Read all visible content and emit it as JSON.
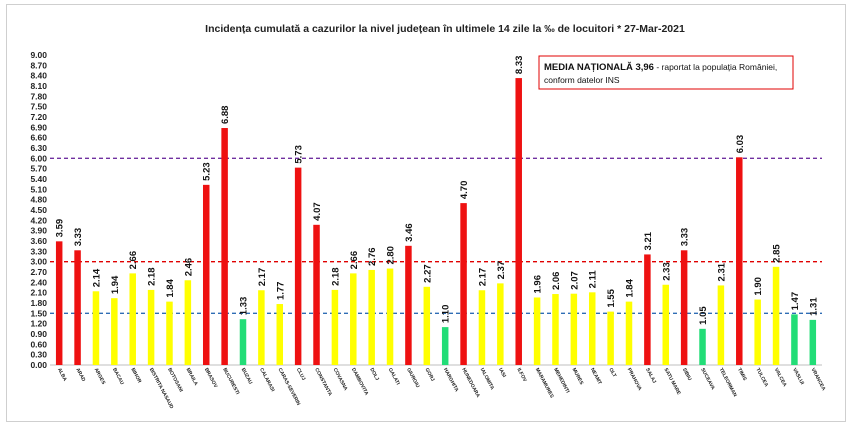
{
  "chart_data": {
    "type": "bar",
    "title": "Incidența cumulată a cazurilor la nivel județean în ultimele 14 zile la ‰ de locuitori * 27-Mar-2021",
    "xlabel": "",
    "ylabel": "",
    "ylim": [
      0,
      9.0
    ],
    "yticks": [
      "0.00",
      "0.30",
      "0.60",
      "0.90",
      "1.20",
      "1.50",
      "1.80",
      "2.10",
      "2.40",
      "2.70",
      "3.00",
      "3.30",
      "3.60",
      "3.90",
      "4.20",
      "4.50",
      "4.80",
      "5.10",
      "5.40",
      "5.70",
      "6.00",
      "6.30",
      "6.60",
      "6.90",
      "7.20",
      "7.50",
      "7.80",
      "8.10",
      "8.40",
      "8.70",
      "9.00"
    ],
    "categories": [
      "ALBA",
      "ARAD",
      "ARGES",
      "BACAU",
      "BIHOR",
      "BISTRITA NASAUD",
      "BOTOSANI",
      "BRAILA",
      "BRASOV",
      "BUCURESTI",
      "BUZAU",
      "CALARASI",
      "CARAS-SEVERIN",
      "CLUJ",
      "CONSTANTA",
      "COVASNA",
      "DAMBOVITA",
      "DOLJ",
      "GALATI",
      "GIURGIU",
      "GORJ",
      "HARGHITA",
      "HUNEDOARA",
      "IALOMITA",
      "IASI",
      "ILFOV",
      "MARAMURES",
      "MEHEDINTI",
      "MURES",
      "NEAMT",
      "OLT",
      "PRAHOVA",
      "SALAJ",
      "SATU MARE",
      "SIBIU",
      "SUCEAVA",
      "TELEORMAN",
      "TIMIS",
      "TULCEA",
      "VALCEA",
      "VASLUI",
      "VRANCEA"
    ],
    "values": [
      3.59,
      3.33,
      2.14,
      1.94,
      2.66,
      2.18,
      1.84,
      2.46,
      5.23,
      6.88,
      1.33,
      2.17,
      1.77,
      5.73,
      4.07,
      2.18,
      2.66,
      2.76,
      2.8,
      3.46,
      2.27,
      1.1,
      4.7,
      2.17,
      2.37,
      8.33,
      1.96,
      2.06,
      2.07,
      2.11,
      1.55,
      1.84,
      3.21,
      2.33,
      3.33,
      1.05,
      2.31,
      6.03,
      1.9,
      2.85,
      1.47,
      1.31
    ],
    "value_labels": [
      "3.59",
      "3.33",
      "2.14",
      "1.94",
      "2.66",
      "2.18",
      "1.84",
      "2.46",
      "5.23",
      "6.88",
      "1.33",
      "2.17",
      "1.77",
      "5.73",
      "4.07",
      "2.18",
      "2.66",
      "2.76",
      "2.80",
      "3.46",
      "2.27",
      "1.10",
      "4.70",
      "2.17",
      "2.37",
      "8.33",
      "1.96",
      "2.06",
      "2.07",
      "2.11",
      "1.55",
      "1.84",
      "3.21",
      "2.33",
      "3.33",
      "1.05",
      "2.31",
      "6.03",
      "1.90",
      "2.85",
      "1.47",
      "1.31"
    ],
    "reference_lines": [
      {
        "value": 6.0,
        "color": "#7030a0"
      },
      {
        "value": 3.0,
        "color": "#e00000"
      },
      {
        "value": 1.5,
        "color": "#2f6db5"
      }
    ],
    "colors": {
      "high": "#ee1111",
      "medium": "#ffff00",
      "low": "#22dd77"
    },
    "annotation": {
      "bold": "MEDIA NAȚIONALĂ  3,96",
      "line1": " - raportat la populația României,",
      "line2": "conform datelor INS",
      "border_color": "#e00000"
    },
    "grid": false,
    "legend": "none"
  }
}
